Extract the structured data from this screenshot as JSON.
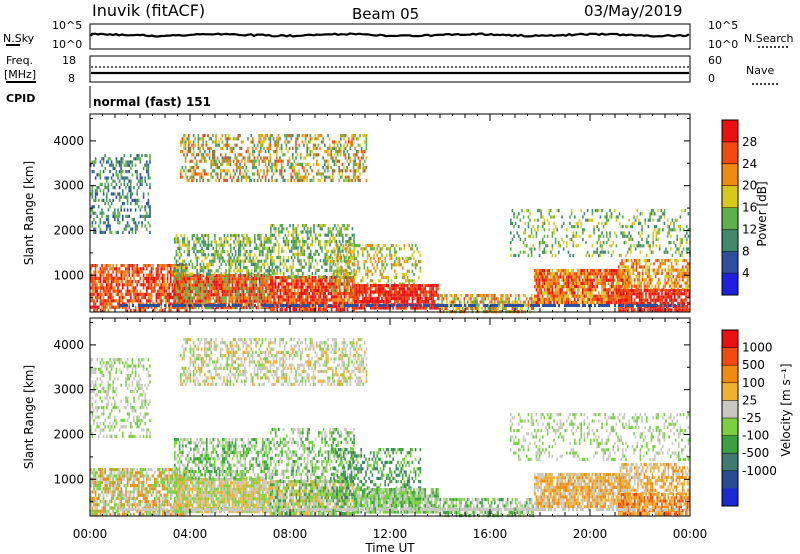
{
  "header": {
    "station": "Inuvik (fitACF)",
    "beam": "Beam 05",
    "date": "03/May/2019"
  },
  "noise_panel": {
    "left_label": "N.Sky",
    "right_label": "N.Search",
    "left_ticks": [
      "10^5",
      "10^0"
    ],
    "right_ticks": [
      "10^5",
      "10^0"
    ]
  },
  "freq_panel": {
    "left_label_1": "Freq.",
    "left_label_2": "[MHz]",
    "right_label": "Nave",
    "left_ticks": [
      "18",
      "8"
    ],
    "right_ticks": [
      "60",
      "0"
    ]
  },
  "cpid": {
    "label": "CPID",
    "value": "normal (fast) 151"
  },
  "colors": {
    "power_scale": [
      "#1f1fe0",
      "#2e4f9e",
      "#3f8a6a",
      "#5fb04a",
      "#d8c81a",
      "#f08a10",
      "#f04a10",
      "#e81010"
    ],
    "velocity_scale": [
      "#e81010",
      "#f04a10",
      "#f08a10",
      "#f0b030",
      "#c8c8c0",
      "#7ad040",
      "#3aa040",
      "#3f7a70",
      "#2a4a90",
      "#1a2ad0"
    ]
  },
  "chart_data": [
    {
      "type": "heatmap",
      "title": "",
      "ylabel": "Slant Range [km]",
      "xlabel": "",
      "x_ticks": [
        "00:00",
        "04:00",
        "08:00",
        "12:00",
        "16:00",
        "20:00",
        "00:00"
      ],
      "y_ticks": [
        "1000",
        "2000",
        "3000",
        "4000"
      ],
      "ylim": [
        180,
        4600
      ],
      "xlim_hours": [
        0,
        24
      ],
      "colorbar": {
        "label": "Power [dB]",
        "ticks": [
          "4",
          "8",
          "12",
          "16",
          "20",
          "24",
          "28"
        ]
      }
    },
    {
      "type": "heatmap",
      "title": "",
      "ylabel": "Slant Range [km]",
      "xlabel": "Time UT",
      "x_ticks": [
        "00:00",
        "04:00",
        "08:00",
        "12:00",
        "16:00",
        "20:00",
        "00:00"
      ],
      "y_ticks": [
        "1000",
        "2000",
        "3000",
        "4000"
      ],
      "ylim": [
        180,
        4600
      ],
      "xlim_hours": [
        0,
        24
      ],
      "colorbar": {
        "label": "Velocity [m s⁻¹]",
        "ticks": [
          "1000",
          "500",
          "100",
          "25",
          "-25",
          "-100",
          "-500",
          "-1000"
        ]
      }
    }
  ]
}
